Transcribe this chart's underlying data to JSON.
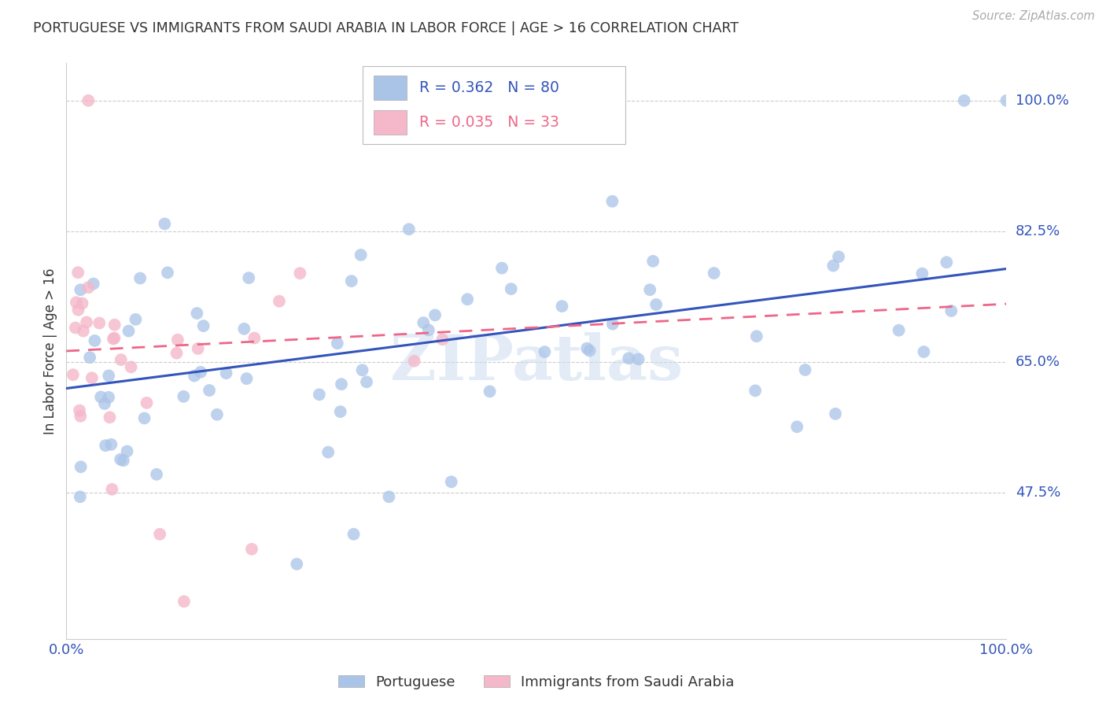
{
  "title": "PORTUGUESE VS IMMIGRANTS FROM SAUDI ARABIA IN LABOR FORCE | AGE > 16 CORRELATION CHART",
  "source": "Source: ZipAtlas.com",
  "ylabel": "In Labor Force | Age > 16",
  "blue_R": 0.362,
  "blue_N": 80,
  "pink_R": 0.035,
  "pink_N": 33,
  "blue_color": "#aac4e8",
  "pink_color": "#f4b8ca",
  "blue_line_color": "#3355bb",
  "pink_line_color": "#ee6688",
  "legend_label_blue": "Portuguese",
  "legend_label_pink": "Immigrants from Saudi Arabia",
  "watermark": "ZIPatlas",
  "ytick_labels": [
    "100.0%",
    "82.5%",
    "65.0%",
    "47.5%"
  ],
  "ytick_values": [
    1.0,
    0.825,
    0.65,
    0.475
  ],
  "xlim": [
    0.0,
    1.0
  ],
  "ylim": [
    0.28,
    1.05
  ],
  "axis_color": "#3355bb",
  "title_color": "#333333",
  "grid_color": "#cccccc",
  "background_color": "#ffffff",
  "blue_line_start_y": 0.615,
  "blue_line_end_y": 0.775,
  "pink_line_start_y": 0.665,
  "pink_line_end_y": 0.728
}
